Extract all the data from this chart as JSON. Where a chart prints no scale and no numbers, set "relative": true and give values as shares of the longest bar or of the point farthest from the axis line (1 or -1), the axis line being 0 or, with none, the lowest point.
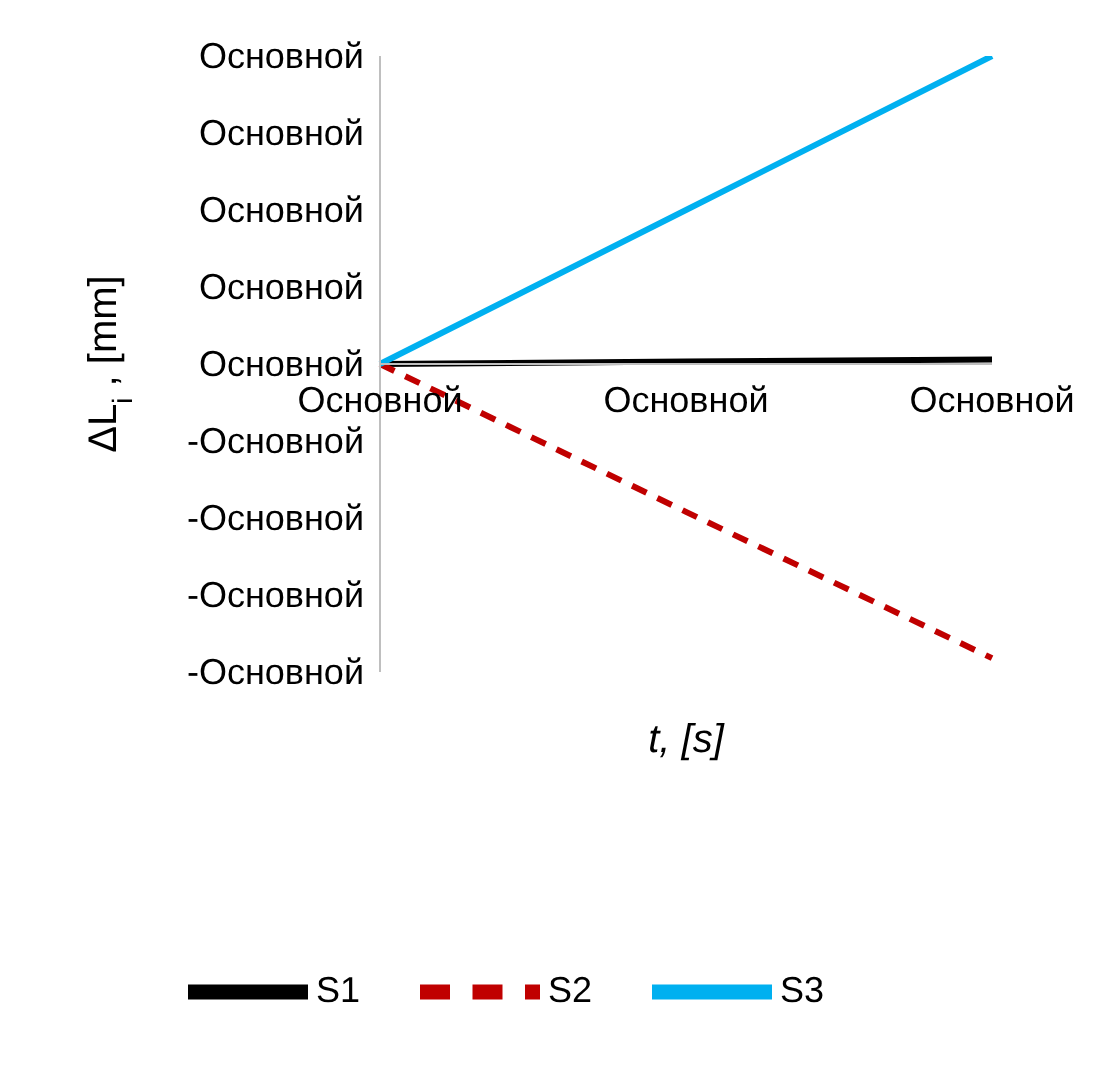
{
  "chart_data": {
    "type": "line",
    "relative": true,
    "xlabel": "t, [s]",
    "ylabel": "ΔL$_{i}$, [mm]",
    "categories": [
      "Основной",
      "Основной",
      "Основной"
    ],
    "series": [
      {
        "name": "S1",
        "color": "#000000",
        "values": [
          0,
          0.008,
          0.015
        ],
        "line_style": "solid"
      },
      {
        "name": "S2",
        "color": "#c00000",
        "values": [
          0,
          -0.48,
          -0.955
        ],
        "line_style": "dashed"
      },
      {
        "name": "S3",
        "color": "#00b0f0",
        "values": [
          0,
          0.5,
          1
        ],
        "line_style": "solid"
      }
    ],
    "annotations": [
      "Основной",
      "Основной",
      "Основной",
      "Основной",
      "Основной",
      "-Основной",
      "-Основной",
      "-Основной",
      "-Основной"
    ],
    "grid": false,
    "legend": "bottom",
    "marker": "none"
  }
}
